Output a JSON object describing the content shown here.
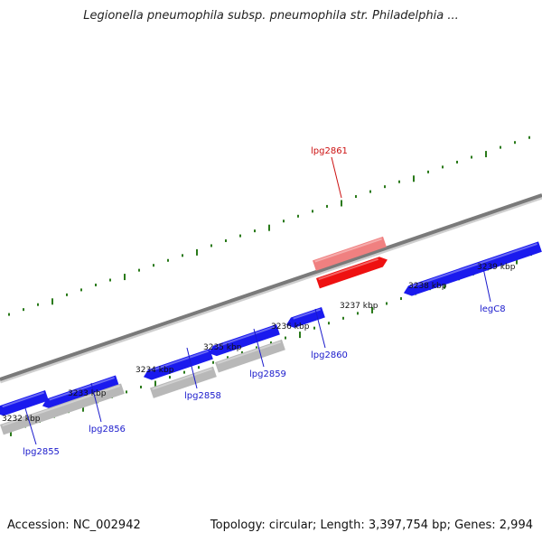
{
  "title": "Legionella pneumophila subsp. pneumophila str. Philadelphia ...",
  "footer": {
    "accession": "Accession: NC_002942",
    "summary": "Topology: circular; Length: 3,397,754 bp; Genes: 2,994"
  },
  "colors": {
    "gene_blue": "#1a1aee",
    "gene_highlight": "#ee1111",
    "gene_highlight_light": "#f08080",
    "gene_gray": "#b8b8b8",
    "backbone": "#7a7a7a",
    "tick_green": "#2a7a1a",
    "label_blue": "#1a1acc",
    "label_red": "#cc1111"
  },
  "scale_labels": [
    "3232 kbp",
    "3233 kbp",
    "3234 kbp",
    "3235 kbp",
    "3236 kbp",
    "3237 kbp",
    "3238 kbp",
    "3239 kbp"
  ],
  "gene_labels": [
    {
      "text": "lpg2855",
      "color": "blue"
    },
    {
      "text": "lpg2856",
      "color": "blue"
    },
    {
      "text": "lpg2858",
      "color": "blue"
    },
    {
      "text": "lpg2859",
      "color": "blue"
    },
    {
      "text": "lpg2860",
      "color": "blue"
    },
    {
      "text": "lpg2861",
      "color": "red"
    },
    {
      "text": "legC8",
      "color": "blue"
    }
  ]
}
